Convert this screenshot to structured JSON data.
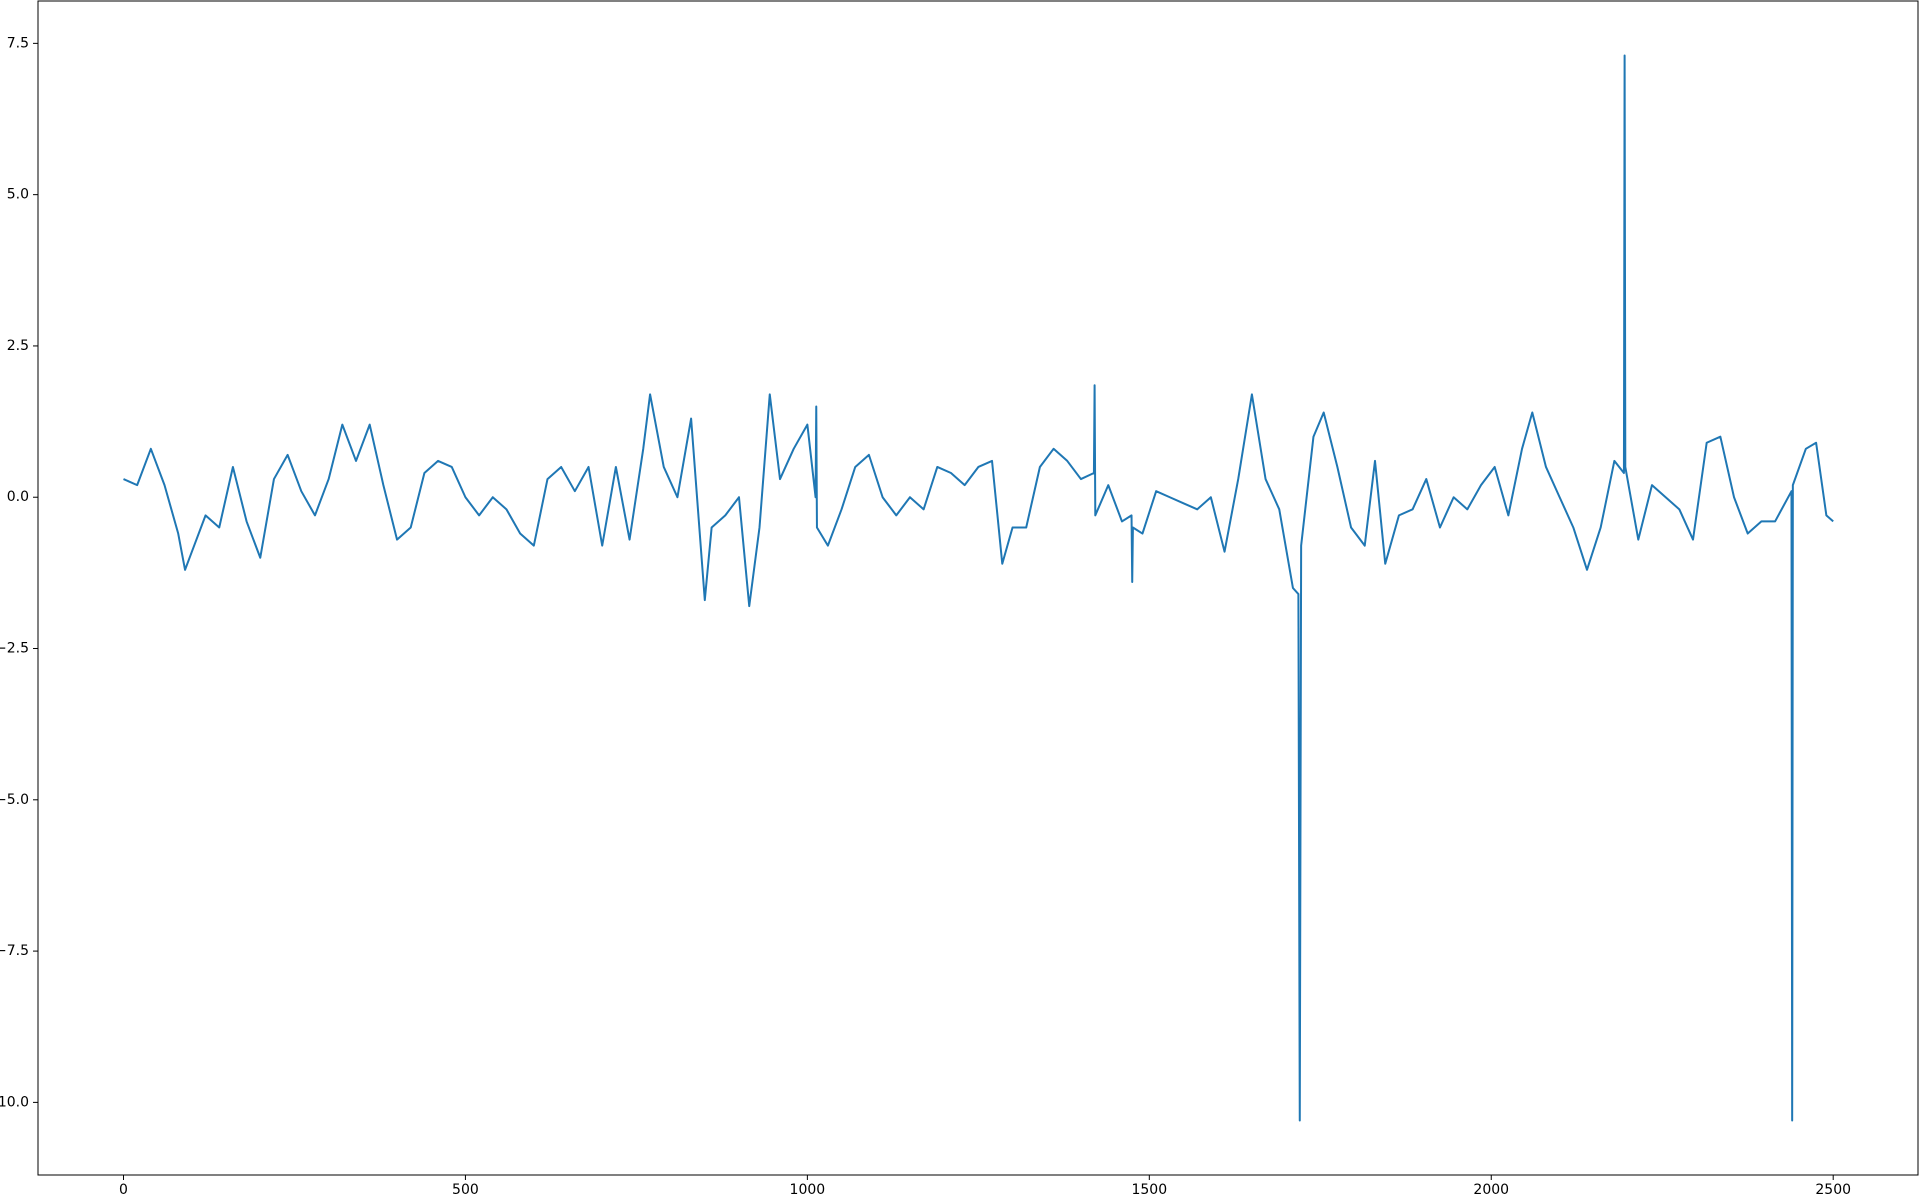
{
  "chart_data": {
    "type": "line",
    "x": [
      0,
      20,
      40,
      60,
      80,
      90,
      100,
      120,
      140,
      160,
      180,
      200,
      220,
      240,
      260,
      280,
      300,
      320,
      340,
      360,
      380,
      400,
      420,
      440,
      460,
      480,
      500,
      520,
      540,
      560,
      580,
      600,
      620,
      640,
      660,
      680,
      700,
      720,
      740,
      760,
      770,
      790,
      810,
      830,
      850,
      860,
      880,
      900,
      915,
      930,
      945,
      960,
      980,
      1000,
      1012,
      1013,
      1014,
      1030,
      1050,
      1070,
      1090,
      1110,
      1130,
      1150,
      1170,
      1190,
      1210,
      1230,
      1250,
      1270,
      1285,
      1300,
      1320,
      1340,
      1360,
      1380,
      1400,
      1419,
      1420,
      1421,
      1440,
      1460,
      1474,
      1475,
      1476,
      1490,
      1510,
      1530,
      1550,
      1570,
      1590,
      1610,
      1630,
      1650,
      1670,
      1690,
      1710,
      1718,
      1720,
      1722,
      1740,
      1755,
      1775,
      1795,
      1815,
      1830,
      1845,
      1865,
      1885,
      1905,
      1925,
      1945,
      1965,
      1985,
      2005,
      2025,
      2045,
      2060,
      2080,
      2100,
      2120,
      2140,
      2160,
      2180,
      2194,
      2195,
      2196,
      2215,
      2235,
      2255,
      2275,
      2295,
      2315,
      2335,
      2355,
      2375,
      2395,
      2415,
      2439,
      2440,
      2441,
      2460,
      2475,
      2490,
      2500
    ],
    "values": [
      0.3,
      0.2,
      0.8,
      0.2,
      -0.6,
      -1.2,
      -0.9,
      -0.3,
      -0.5,
      0.5,
      -0.4,
      -1.0,
      0.3,
      0.7,
      0.1,
      -0.3,
      0.3,
      1.2,
      0.6,
      1.2,
      0.2,
      -0.7,
      -0.5,
      0.4,
      0.6,
      0.5,
      0.0,
      -0.3,
      0.0,
      -0.2,
      -0.6,
      -0.8,
      0.3,
      0.5,
      0.1,
      0.5,
      -0.8,
      0.5,
      -0.7,
      0.8,
      1.7,
      0.5,
      0.0,
      1.3,
      -1.7,
      -0.5,
      -0.3,
      0.0,
      -1.8,
      -0.5,
      1.7,
      0.3,
      0.8,
      1.2,
      0.0,
      1.5,
      -0.5,
      -0.8,
      -0.2,
      0.5,
      0.7,
      0.0,
      -0.3,
      0.0,
      -0.2,
      0.5,
      0.4,
      0.2,
      0.5,
      0.6,
      -1.1,
      -0.5,
      -0.5,
      0.5,
      0.8,
      0.6,
      0.3,
      0.4,
      1.85,
      -0.3,
      0.2,
      -0.4,
      -0.3,
      -1.4,
      -0.5,
      -0.6,
      0.1,
      0.0,
      -0.1,
      -0.2,
      0.0,
      -0.9,
      0.3,
      1.7,
      0.3,
      -0.2,
      -1.5,
      -1.6,
      -10.3,
      -0.8,
      1.0,
      1.4,
      0.5,
      -0.5,
      -0.8,
      0.6,
      -1.1,
      -0.3,
      -0.2,
      0.3,
      -0.5,
      0.0,
      -0.2,
      0.2,
      0.5,
      -0.3,
      0.8,
      1.4,
      0.5,
      0.0,
      -0.5,
      -1.2,
      -0.5,
      0.6,
      0.4,
      7.3,
      0.5,
      -0.7,
      0.2,
      0.0,
      -0.2,
      -0.7,
      0.9,
      1.0,
      0.0,
      -0.6,
      -0.4,
      -0.4,
      0.1,
      -10.3,
      0.2,
      0.8,
      0.9,
      -0.3,
      -0.4
    ],
    "color": "#1f77b4",
    "xlim": [
      -125,
      2624
    ],
    "ylim": [
      -11.2,
      8.2
    ],
    "xticks": [
      0,
      500,
      1000,
      1500,
      2000,
      2500
    ],
    "yticks": [
      {
        "value": 7.5,
        "label": "7.5"
      },
      {
        "value": 5,
        "label": "5.0"
      },
      {
        "value": 2.5,
        "label": "2.5"
      },
      {
        "value": 0,
        "label": "0.0"
      },
      {
        "value": -2.5,
        "label": "−2.5"
      },
      {
        "value": -5,
        "label": "−5.0"
      },
      {
        "value": -7.5,
        "label": "−7.5"
      },
      {
        "value": -10,
        "label": "−10.0"
      }
    ]
  }
}
